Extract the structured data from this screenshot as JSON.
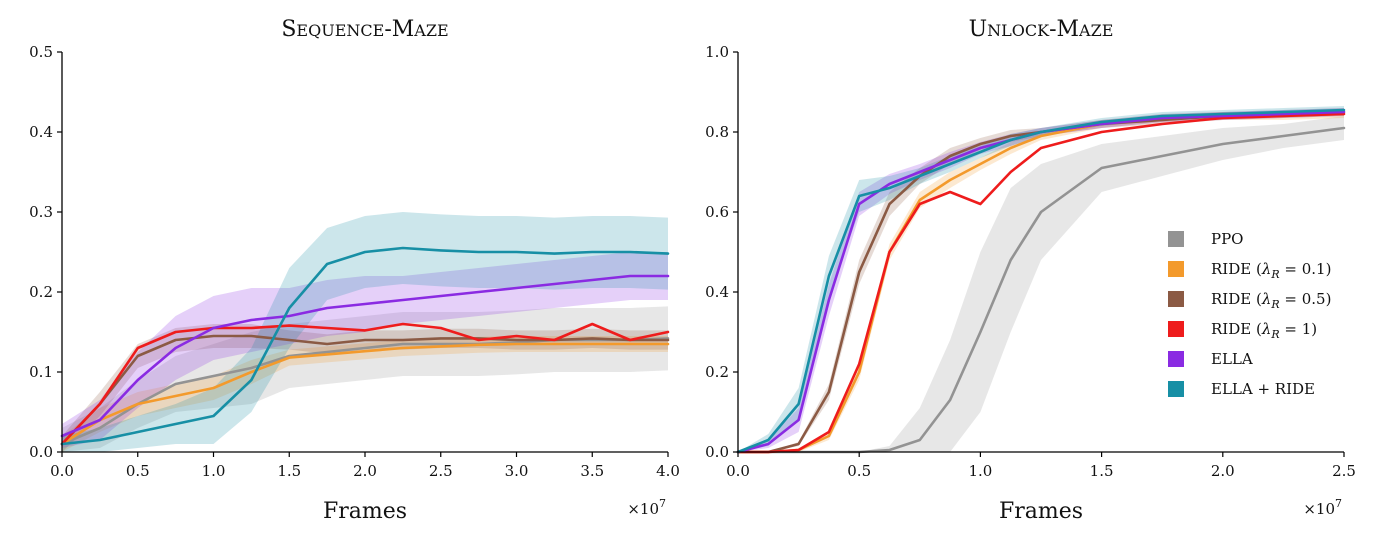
{
  "chart_data": [
    {
      "type": "line",
      "title": "Sequence-Maze",
      "xlabel": "Frames",
      "ylabel": "",
      "x_multiplier": "×10^7",
      "xlim": [
        0,
        4.0
      ],
      "ylim": [
        0,
        0.5
      ],
      "xticks": [
        "0.0",
        "0.5",
        "1.0",
        "1.5",
        "2.0",
        "2.5",
        "3.0",
        "3.5",
        "4.0"
      ],
      "yticks": [
        "0.0",
        "0.1",
        "0.2",
        "0.3",
        "0.4",
        "0.5"
      ],
      "legend": null,
      "x": [
        0.0,
        0.25,
        0.5,
        0.75,
        1.0,
        1.25,
        1.5,
        1.75,
        2.0,
        2.25,
        2.5,
        2.75,
        3.0,
        3.25,
        3.5,
        3.75,
        4.0
      ],
      "series": [
        {
          "name": "PPO",
          "color": "#939393",
          "values": [
            0.01,
            0.03,
            0.06,
            0.085,
            0.095,
            0.105,
            0.12,
            0.125,
            0.13,
            0.135,
            0.135,
            0.135,
            0.137,
            0.14,
            0.14,
            0.14,
            0.142
          ],
          "band": [
            0.02,
            0.025,
            0.03,
            0.035,
            0.04,
            0.045,
            0.04,
            0.04,
            0.04,
            0.04,
            0.04,
            0.04,
            0.04,
            0.04,
            0.04,
            0.04,
            0.04
          ]
        },
        {
          "name": "RIDE (λ_R = 0.1)",
          "color": "#f39a2c",
          "values": [
            0.01,
            0.04,
            0.06,
            0.07,
            0.08,
            0.1,
            0.118,
            0.122,
            0.126,
            0.13,
            0.132,
            0.134,
            0.135,
            0.135,
            0.135,
            0.135,
            0.135
          ],
          "band": [
            0.01,
            0.015,
            0.015,
            0.015,
            0.015,
            0.015,
            0.01,
            0.01,
            0.01,
            0.01,
            0.01,
            0.01,
            0.01,
            0.01,
            0.01,
            0.01,
            0.01
          ]
        },
        {
          "name": "RIDE (λ_R = 0.5)",
          "color": "#8b5a44",
          "values": [
            0.01,
            0.06,
            0.12,
            0.14,
            0.145,
            0.145,
            0.14,
            0.135,
            0.14,
            0.14,
            0.142,
            0.142,
            0.14,
            0.14,
            0.142,
            0.14,
            0.14
          ],
          "band": [
            0.01,
            0.015,
            0.015,
            0.015,
            0.015,
            0.015,
            0.012,
            0.012,
            0.012,
            0.012,
            0.012,
            0.012,
            0.012,
            0.012,
            0.012,
            0.012,
            0.012
          ]
        },
        {
          "name": "RIDE (λ_R = 1)",
          "color": "#ee1c1c",
          "values": [
            0.01,
            0.06,
            0.13,
            0.15,
            0.155,
            0.155,
            0.158,
            0.155,
            0.152,
            0.16,
            0.155,
            0.14,
            0.145,
            0.14,
            0.16,
            0.14,
            0.15
          ],
          "band": [
            0,
            0,
            0,
            0,
            0,
            0,
            0,
            0,
            0,
            0,
            0,
            0,
            0,
            0,
            0,
            0,
            0
          ]
        },
        {
          "name": "ELLA",
          "color": "#8a2be2",
          "values": [
            0.02,
            0.04,
            0.09,
            0.13,
            0.155,
            0.165,
            0.17,
            0.18,
            0.185,
            0.19,
            0.195,
            0.2,
            0.205,
            0.21,
            0.215,
            0.22,
            0.22
          ],
          "band": [
            0.015,
            0.025,
            0.035,
            0.04,
            0.04,
            0.04,
            0.035,
            0.035,
            0.035,
            0.03,
            0.03,
            0.03,
            0.03,
            0.03,
            0.03,
            0.03,
            0.03
          ]
        },
        {
          "name": "ELLA + RIDE",
          "color": "#178fa5",
          "values": [
            0.01,
            0.015,
            0.025,
            0.035,
            0.045,
            0.09,
            0.18,
            0.235,
            0.25,
            0.255,
            0.252,
            0.25,
            0.25,
            0.248,
            0.25,
            0.25,
            0.248
          ],
          "band": [
            0.01,
            0.015,
            0.02,
            0.025,
            0.035,
            0.04,
            0.05,
            0.045,
            0.045,
            0.045,
            0.045,
            0.045,
            0.045,
            0.045,
            0.045,
            0.045,
            0.045
          ]
        }
      ]
    },
    {
      "type": "line",
      "title": "Unlock-Maze",
      "xlabel": "Frames",
      "ylabel": "",
      "x_multiplier": "×10^7",
      "xlim": [
        0,
        2.5
      ],
      "ylim": [
        0,
        1.0
      ],
      "xticks": [
        "0.0",
        "0.5",
        "1.0",
        "1.5",
        "2.0",
        "2.5"
      ],
      "yticks": [
        "0.0",
        "0.2",
        "0.4",
        "0.6",
        "0.8",
        "1.0"
      ],
      "legend": "center-right",
      "x": [
        0.0,
        0.125,
        0.25,
        0.375,
        0.5,
        0.625,
        0.75,
        0.875,
        1.0,
        1.125,
        1.25,
        1.5,
        1.75,
        2.0,
        2.25,
        2.5
      ],
      "series": [
        {
          "name": "PPO",
          "color": "#939393",
          "values": [
            0.0,
            0.0,
            0.0,
            0.0,
            0.0,
            0.005,
            0.03,
            0.13,
            0.3,
            0.48,
            0.6,
            0.71,
            0.74,
            0.77,
            0.79,
            0.81
          ],
          "band": [
            0,
            0,
            0,
            0,
            0,
            0.01,
            0.08,
            0.15,
            0.2,
            0.18,
            0.12,
            0.06,
            0.05,
            0.04,
            0.03,
            0.03
          ]
        },
        {
          "name": "RIDE (λ_R = 0.1)",
          "color": "#f39a2c",
          "values": [
            0.0,
            0.0,
            0.005,
            0.04,
            0.2,
            0.5,
            0.63,
            0.68,
            0.72,
            0.76,
            0.79,
            0.82,
            0.835,
            0.84,
            0.84,
            0.845
          ],
          "band": [
            0,
            0,
            0.005,
            0.01,
            0.02,
            0.02,
            0.02,
            0.02,
            0.015,
            0.015,
            0.01,
            0.01,
            0.01,
            0.01,
            0.01,
            0.01
          ]
        },
        {
          "name": "RIDE (λ_R = 0.5)",
          "color": "#8b5a44",
          "values": [
            0.0,
            0.0,
            0.02,
            0.15,
            0.45,
            0.62,
            0.69,
            0.74,
            0.77,
            0.79,
            0.8,
            0.82,
            0.83,
            0.84,
            0.845,
            0.85
          ],
          "band": [
            0,
            0,
            0.005,
            0.02,
            0.03,
            0.03,
            0.02,
            0.02,
            0.015,
            0.015,
            0.01,
            0.01,
            0.01,
            0.01,
            0.01,
            0.01
          ]
        },
        {
          "name": "RIDE (λ_R = 1)",
          "color": "#ee1c1c",
          "values": [
            0.0,
            0.0,
            0.005,
            0.05,
            0.22,
            0.5,
            0.62,
            0.65,
            0.62,
            0.7,
            0.76,
            0.8,
            0.82,
            0.835,
            0.84,
            0.845
          ],
          "band": [
            0,
            0,
            0,
            0,
            0,
            0,
            0,
            0,
            0,
            0,
            0,
            0,
            0,
            0,
            0,
            0
          ]
        },
        {
          "name": "ELLA",
          "color": "#8a2be2",
          "values": [
            0.0,
            0.02,
            0.08,
            0.38,
            0.62,
            0.67,
            0.7,
            0.73,
            0.76,
            0.78,
            0.8,
            0.82,
            0.835,
            0.84,
            0.845,
            0.85
          ],
          "band": [
            0,
            0.01,
            0.03,
            0.04,
            0.03,
            0.025,
            0.02,
            0.02,
            0.015,
            0.015,
            0.01,
            0.01,
            0.01,
            0.01,
            0.01,
            0.01
          ]
        },
        {
          "name": "ELLA + RIDE",
          "color": "#178fa5",
          "values": [
            0.0,
            0.03,
            0.12,
            0.44,
            0.64,
            0.66,
            0.69,
            0.72,
            0.75,
            0.78,
            0.8,
            0.825,
            0.84,
            0.845,
            0.85,
            0.855
          ],
          "band": [
            0,
            0.015,
            0.04,
            0.05,
            0.04,
            0.03,
            0.02,
            0.02,
            0.015,
            0.015,
            0.01,
            0.01,
            0.01,
            0.01,
            0.01,
            0.01
          ]
        }
      ]
    }
  ]
}
